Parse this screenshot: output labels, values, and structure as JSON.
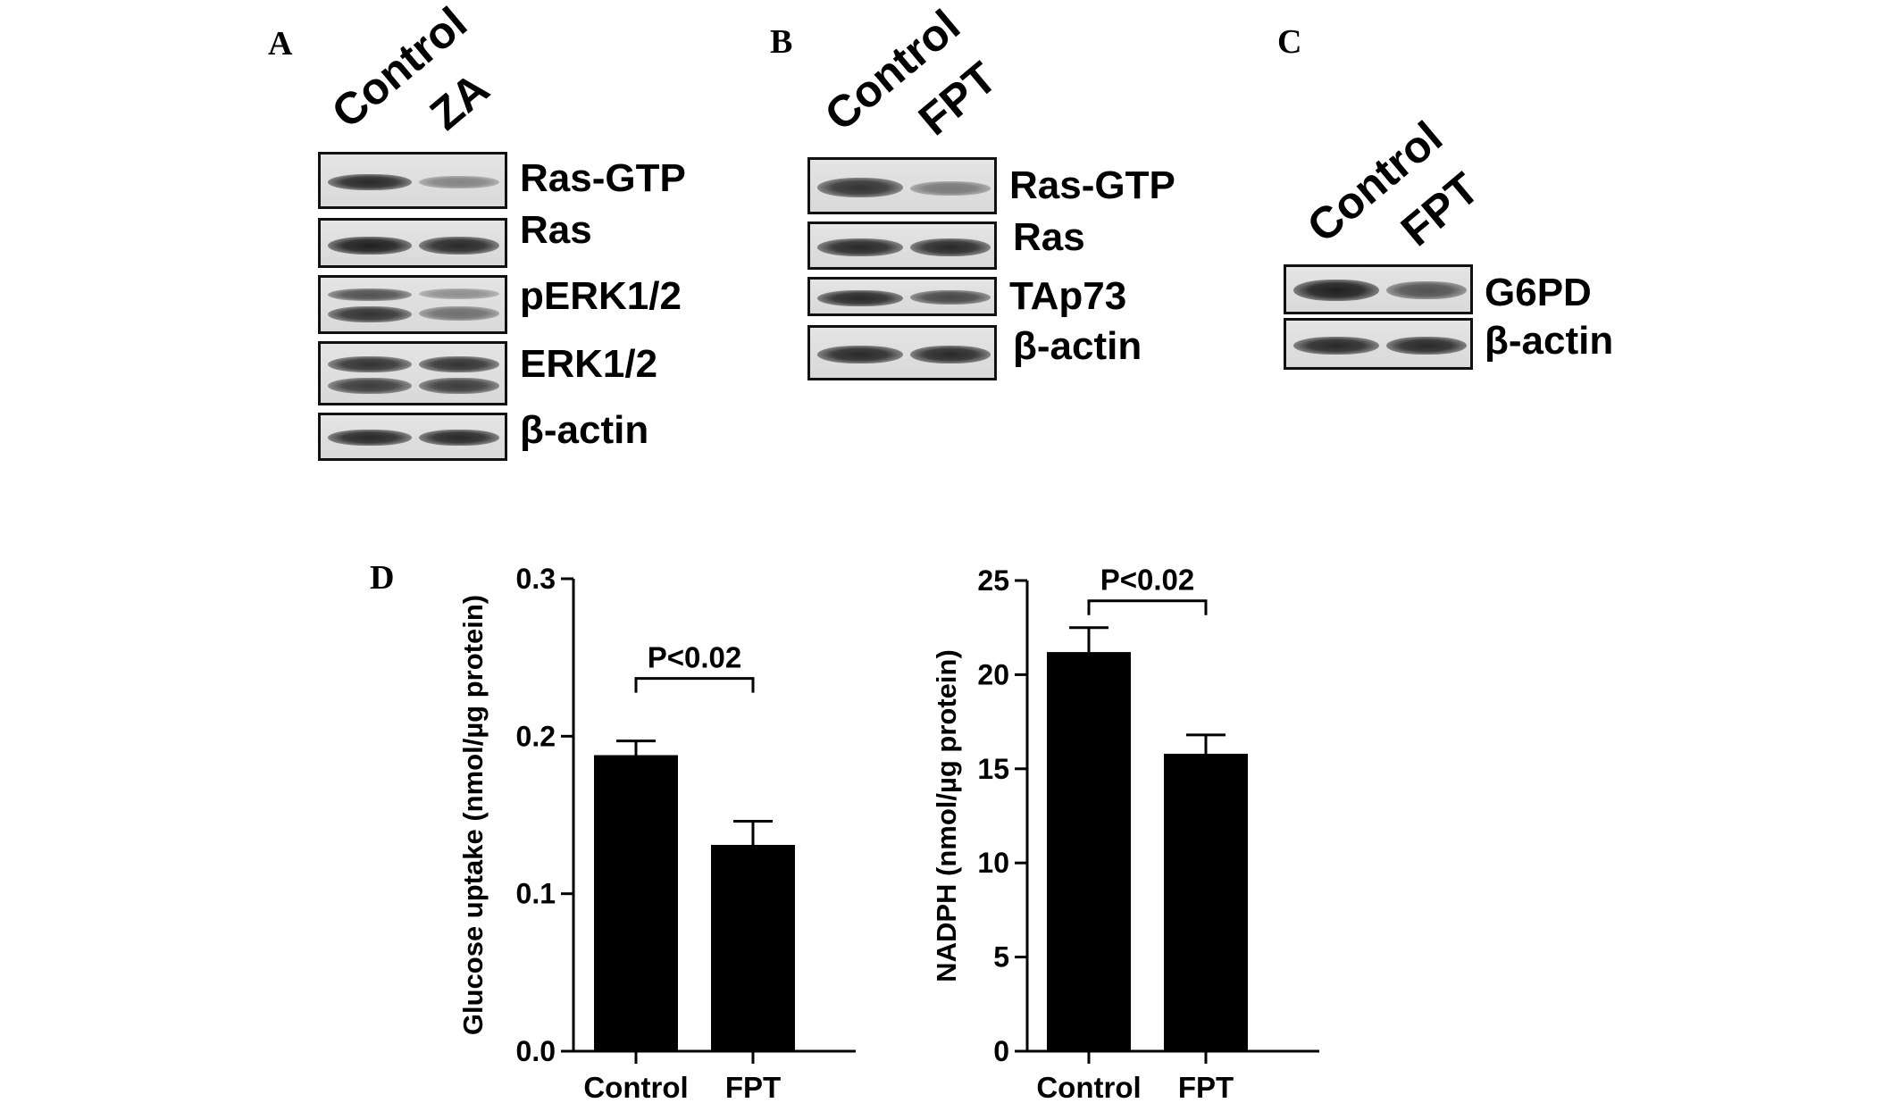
{
  "panels": {
    "A": {
      "label": "A",
      "lanes": [
        "Control",
        "ZA"
      ],
      "blots": [
        {
          "name": "Ras-GTP",
          "band_intensity": [
            0.9,
            0.45
          ]
        },
        {
          "name": "Ras",
          "band_intensity": [
            0.95,
            0.9
          ]
        },
        {
          "name": "pERK1/2",
          "band_intensity": [
            0.8,
            0.5
          ]
        },
        {
          "name": "ERK1/2",
          "band_intensity": [
            0.85,
            0.85
          ]
        },
        {
          "name": "β-actin",
          "band_intensity": [
            0.9,
            0.9
          ]
        }
      ]
    },
    "B": {
      "label": "B",
      "lanes": [
        "Control",
        "FPT"
      ],
      "blots": [
        {
          "name": "Ras-GTP",
          "band_intensity": [
            0.85,
            0.5
          ]
        },
        {
          "name": "Ras",
          "band_intensity": [
            0.9,
            0.9
          ]
        },
        {
          "name": "TAp73",
          "band_intensity": [
            0.9,
            0.75
          ]
        },
        {
          "name": "β-actin",
          "band_intensity": [
            0.9,
            0.9
          ]
        }
      ]
    },
    "C": {
      "label": "C",
      "lanes": [
        "Control",
        "FPT"
      ],
      "blots": [
        {
          "name": "G6PD",
          "band_intensity": [
            0.95,
            0.7
          ]
        },
        {
          "name": "β-actin",
          "band_intensity": [
            0.9,
            0.9
          ]
        }
      ]
    },
    "D": {
      "label": "D"
    }
  },
  "chart_data": [
    {
      "type": "bar",
      "categories": [
        "Control",
        "FPT"
      ],
      "values": [
        0.188,
        0.131
      ],
      "errors": [
        0.009,
        0.015
      ],
      "ylabel": "Glucose uptake (nmol/µg protein)",
      "ylim": [
        0,
        0.3
      ],
      "yticks": [
        "0.0",
        "0.1",
        "0.2",
        "0.3"
      ],
      "annotation": "P<0.02",
      "bar_color": "#000000"
    },
    {
      "type": "bar",
      "categories": [
        "Control",
        "FPT"
      ],
      "values": [
        21.2,
        15.8
      ],
      "errors": [
        1.3,
        1.0
      ],
      "ylabel": "NADPH (nmol/µg protein)",
      "ylim": [
        0,
        25
      ],
      "yticks": [
        "0",
        "5",
        "10",
        "15",
        "20",
        "25"
      ],
      "annotation": "P<0.02",
      "bar_color": "#000000"
    }
  ]
}
